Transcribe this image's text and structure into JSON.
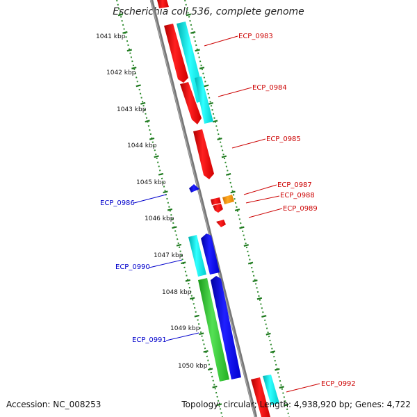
{
  "title": "Escherichia coli 536, complete genome",
  "accession": "Accession: NC_008253",
  "topology": "Topology: circular; Length: 4,938,920 bp; Genes: 4,722",
  "colors": {
    "backbone": "#888888",
    "ruler": "#2e8b2e",
    "red_gene": "#ff0000",
    "cyan_gene": "#00e5e5",
    "blue_gene": "#0000ee",
    "green_gene": "#33cc33",
    "orange_gene": "#ff9900",
    "right_label": "#cc0000",
    "left_label": "#0000cc"
  },
  "ruler_labels": [
    "1041 kbp",
    "1042 kbp",
    "1043 kbp",
    "1044 kbp",
    "1045 kbp",
    "1046 kbp",
    "1047 kbp",
    "1048 kbp",
    "1049 kbp",
    "1050 kbp"
  ],
  "gene_labels_right": [
    "ECP_0983",
    "ECP_0984",
    "ECP_0985",
    "ECP_0987",
    "ECP_0988",
    "ECP_0989",
    "ECP_0992"
  ],
  "gene_labels_left": [
    "ECP_0986",
    "ECP_0990",
    "ECP_0991"
  ]
}
